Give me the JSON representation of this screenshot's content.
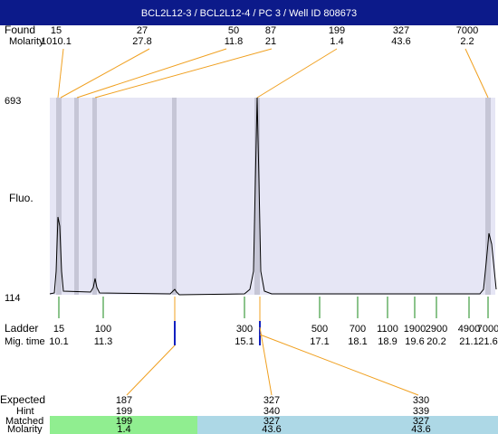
{
  "header": {
    "title": "BCL2L12-3 / BCL2L12-4 / PC 3 / Well ID 808673"
  },
  "found": {
    "label": "Found",
    "molarity_label": "Molarity",
    "peaks": [
      {
        "size": 15,
        "molarity": 1010.1
      },
      {
        "size": 27,
        "molarity": 27.8
      },
      {
        "size": 50,
        "molarity": 11.8
      },
      {
        "size": 87,
        "molarity": 21
      },
      {
        "size": 199,
        "molarity": 1.4
      },
      {
        "size": 327,
        "molarity": 43.6
      },
      {
        "size": 7000,
        "molarity": 2.2
      }
    ]
  },
  "plot": {
    "y_label": "Fluo.",
    "y_max": 693,
    "y_min": 114
  },
  "ladder": {
    "label": "Ladder",
    "time_label": "Mig. time",
    "bands": [
      {
        "size": 15,
        "time": 10.1
      },
      {
        "size": 100,
        "time": 11.3
      },
      {
        "size": 300,
        "time": 15.1
      },
      {
        "size": 500,
        "time": 17.1
      },
      {
        "size": 700,
        "time": 18.1
      },
      {
        "size": 1100,
        "time": 18.9
      },
      {
        "size": 1900,
        "time": 19.6
      },
      {
        "size": 2900,
        "time": 20.2
      },
      {
        "size": 4900,
        "time": 21.1
      },
      {
        "size": 7000,
        "time": 21.6
      }
    ]
  },
  "expected": {
    "label": "Expected",
    "hint_label": "Hint",
    "matched_label": "Matched",
    "molarity_label": "Molarity",
    "items": [
      {
        "expected": 187,
        "hint": 199,
        "matched": 199,
        "molarity": 1.4
      },
      {
        "expected": 327,
        "hint": 340,
        "matched": 327,
        "molarity": 43.6
      },
      {
        "expected": 330,
        "hint": 339,
        "matched": 327,
        "molarity": 43.6
      }
    ]
  }
}
